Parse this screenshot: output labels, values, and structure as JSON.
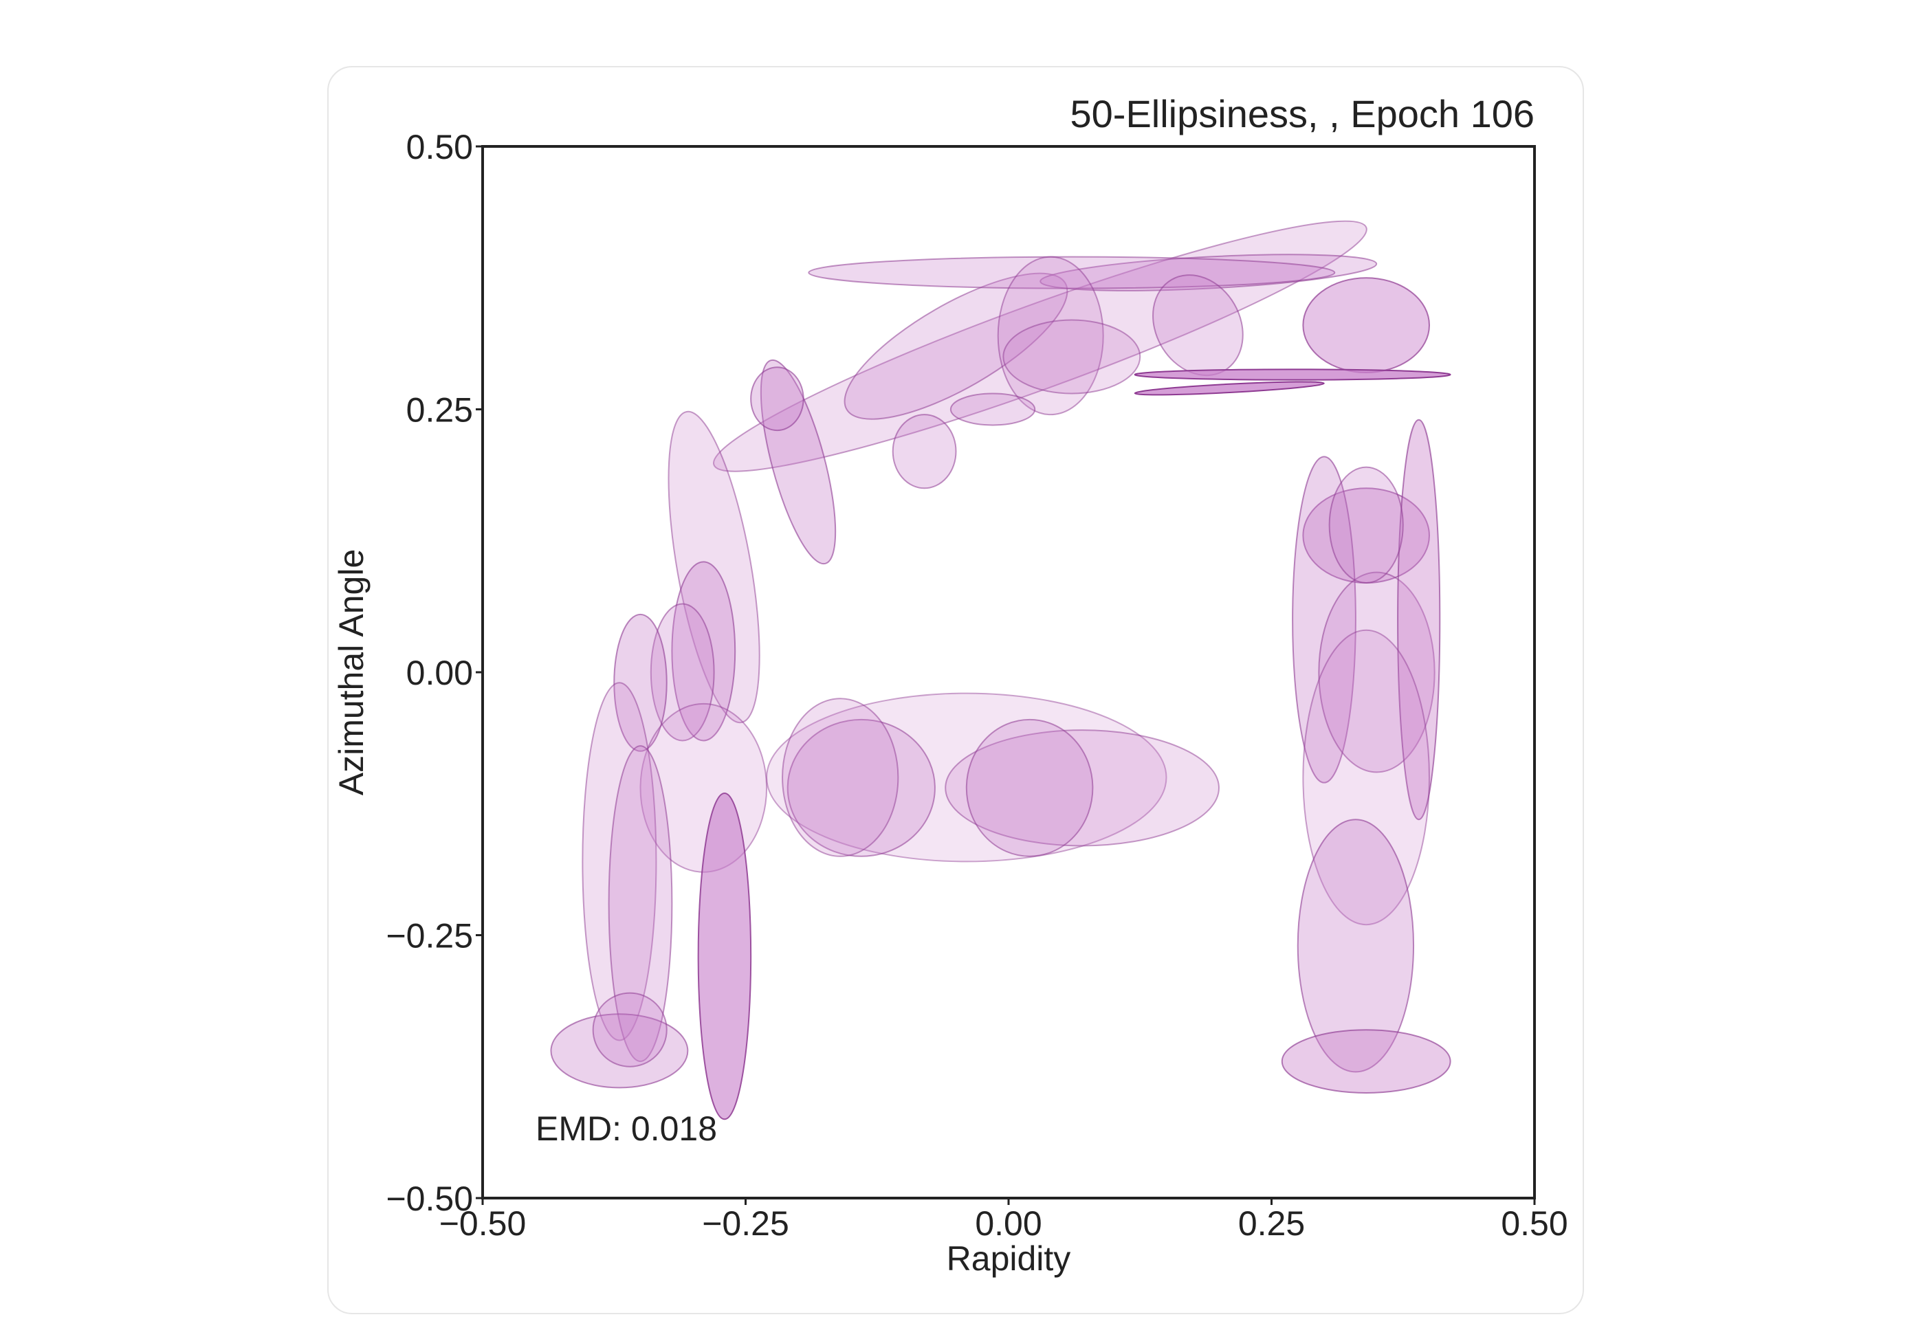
{
  "chart_data": {
    "type": "scatter",
    "title": "50-Ellipsiness, , Epoch 106",
    "xlabel": "Rapidity",
    "ylabel": "Azimuthal Angle",
    "xlim": [
      -0.5,
      0.5
    ],
    "ylim": [
      -0.5,
      0.5
    ],
    "xticks": [
      "−0.50",
      "−0.25",
      "0.00",
      "0.25",
      "0.50"
    ],
    "yticks": [
      "−0.50",
      "−0.25",
      "0.00",
      "0.25",
      "0.50"
    ],
    "xtick_values": [
      -0.5,
      -0.25,
      0.0,
      0.25,
      0.5
    ],
    "ytick_values": [
      -0.5,
      -0.25,
      0.0,
      0.25,
      0.5
    ],
    "annotation": "EMD: 0.018",
    "grid": false,
    "fill_color": "#c77dc9",
    "edge_color": "#8e3a92",
    "ellipses": [
      {
        "cx": 0.03,
        "cy": 0.31,
        "rx": 0.33,
        "ry": 0.04,
        "angle": 20,
        "opacity": 0.25
      },
      {
        "cx": -0.05,
        "cy": 0.31,
        "rx": 0.12,
        "ry": 0.04,
        "angle": 30,
        "opacity": 0.28
      },
      {
        "cx": 0.19,
        "cy": 0.38,
        "rx": 0.16,
        "ry": 0.015,
        "angle": 3,
        "opacity": 0.3
      },
      {
        "cx": 0.06,
        "cy": 0.38,
        "rx": 0.25,
        "ry": 0.015,
        "angle": 0,
        "opacity": 0.3
      },
      {
        "cx": 0.04,
        "cy": 0.32,
        "rx": 0.05,
        "ry": 0.075,
        "angle": 0,
        "opacity": 0.25
      },
      {
        "cx": 0.06,
        "cy": 0.3,
        "rx": 0.065,
        "ry": 0.035,
        "angle": 0,
        "opacity": 0.25
      },
      {
        "cx": 0.18,
        "cy": 0.33,
        "rx": 0.04,
        "ry": 0.05,
        "angle": 30,
        "opacity": 0.3
      },
      {
        "cx": 0.34,
        "cy": 0.33,
        "rx": 0.06,
        "ry": 0.045,
        "angle": 0,
        "opacity": 0.45
      },
      {
        "cx": -0.015,
        "cy": 0.25,
        "rx": 0.04,
        "ry": 0.015,
        "angle": 0,
        "opacity": 0.3
      },
      {
        "cx": -0.08,
        "cy": 0.21,
        "rx": 0.03,
        "ry": 0.035,
        "angle": 0,
        "opacity": 0.3
      },
      {
        "cx": -0.2,
        "cy": 0.2,
        "rx": 0.025,
        "ry": 0.1,
        "angle": 15,
        "opacity": 0.35
      },
      {
        "cx": -0.22,
        "cy": 0.26,
        "rx": 0.025,
        "ry": 0.03,
        "angle": 0,
        "opacity": 0.35
      },
      {
        "cx": -0.28,
        "cy": 0.1,
        "rx": 0.035,
        "ry": 0.15,
        "angle": 10,
        "opacity": 0.25
      },
      {
        "cx": -0.29,
        "cy": 0.02,
        "rx": 0.03,
        "ry": 0.085,
        "angle": 0,
        "opacity": 0.35
      },
      {
        "cx": -0.31,
        "cy": 0.0,
        "rx": 0.03,
        "ry": 0.065,
        "angle": 0,
        "opacity": 0.3
      },
      {
        "cx": -0.35,
        "cy": -0.01,
        "rx": 0.025,
        "ry": 0.065,
        "angle": 0,
        "opacity": 0.35
      },
      {
        "cx": -0.29,
        "cy": -0.11,
        "rx": 0.06,
        "ry": 0.08,
        "angle": 0,
        "opacity": 0.22
      },
      {
        "cx": -0.37,
        "cy": -0.18,
        "rx": 0.035,
        "ry": 0.17,
        "angle": 0,
        "opacity": 0.25
      },
      {
        "cx": -0.35,
        "cy": -0.22,
        "rx": 0.03,
        "ry": 0.15,
        "angle": 0,
        "opacity": 0.3
      },
      {
        "cx": -0.37,
        "cy": -0.36,
        "rx": 0.065,
        "ry": 0.035,
        "angle": 0,
        "opacity": 0.35
      },
      {
        "cx": -0.36,
        "cy": -0.34,
        "rx": 0.035,
        "ry": 0.035,
        "angle": 0,
        "opacity": 0.3
      },
      {
        "cx": -0.27,
        "cy": -0.27,
        "rx": 0.025,
        "ry": 0.155,
        "angle": 0,
        "opacity": 0.6
      },
      {
        "cx": -0.04,
        "cy": -0.1,
        "rx": 0.19,
        "ry": 0.08,
        "angle": 0,
        "opacity": 0.2
      },
      {
        "cx": 0.07,
        "cy": -0.11,
        "rx": 0.13,
        "ry": 0.055,
        "angle": 0,
        "opacity": 0.25
      },
      {
        "cx": 0.02,
        "cy": -0.11,
        "rx": 0.06,
        "ry": 0.065,
        "angle": 0,
        "opacity": 0.3
      },
      {
        "cx": -0.14,
        "cy": -0.11,
        "rx": 0.07,
        "ry": 0.065,
        "angle": 0,
        "opacity": 0.3
      },
      {
        "cx": -0.16,
        "cy": -0.1,
        "rx": 0.055,
        "ry": 0.075,
        "angle": 0,
        "opacity": 0.25
      },
      {
        "cx": 0.34,
        "cy": 0.13,
        "rx": 0.06,
        "ry": 0.045,
        "angle": 0,
        "opacity": 0.4
      },
      {
        "cx": 0.3,
        "cy": 0.05,
        "rx": 0.03,
        "ry": 0.155,
        "angle": 0,
        "opacity": 0.35
      },
      {
        "cx": 0.35,
        "cy": 0.0,
        "rx": 0.055,
        "ry": 0.095,
        "angle": 0,
        "opacity": 0.3
      },
      {
        "cx": 0.39,
        "cy": 0.05,
        "rx": 0.02,
        "ry": 0.19,
        "angle": 0,
        "opacity": 0.4
      },
      {
        "cx": 0.34,
        "cy": -0.1,
        "rx": 0.06,
        "ry": 0.14,
        "angle": 0,
        "opacity": 0.22
      },
      {
        "cx": 0.33,
        "cy": -0.26,
        "rx": 0.055,
        "ry": 0.12,
        "angle": 0,
        "opacity": 0.35
      },
      {
        "cx": 0.34,
        "cy": -0.37,
        "rx": 0.08,
        "ry": 0.03,
        "angle": 0,
        "opacity": 0.4
      },
      {
        "cx": 0.34,
        "cy": 0.14,
        "rx": 0.035,
        "ry": 0.055,
        "angle": 0,
        "opacity": 0.3
      },
      {
        "cx": 0.27,
        "cy": 0.283,
        "rx": 0.15,
        "ry": 0.005,
        "angle": 0,
        "opacity": 0.75
      },
      {
        "cx": 0.21,
        "cy": 0.27,
        "rx": 0.09,
        "ry": 0.004,
        "angle": 3,
        "opacity": 0.75
      }
    ]
  }
}
